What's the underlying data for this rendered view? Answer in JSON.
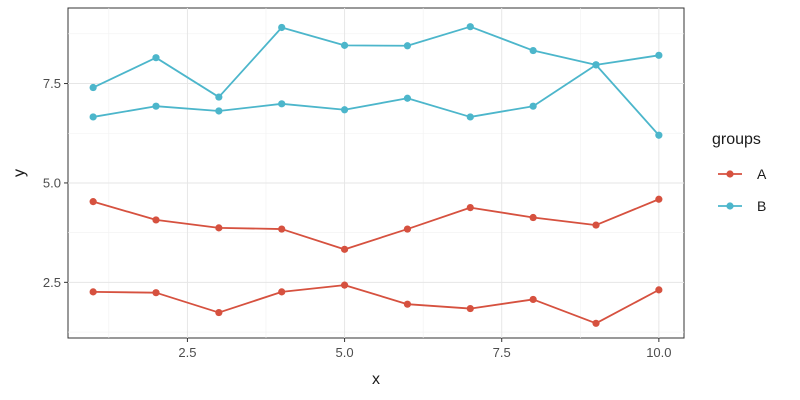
{
  "chart_data": {
    "type": "line",
    "title": "",
    "xlabel": "x",
    "ylabel": "y",
    "xlim": [
      0.6,
      10.4
    ],
    "ylim": [
      1.1,
      9.4
    ],
    "xticks": [
      2.5,
      5.0,
      7.5,
      10.0
    ],
    "xtick_labels": [
      "2.5",
      "5.0",
      "7.5",
      "10.0"
    ],
    "yticks": [
      2.5,
      5.0,
      7.5
    ],
    "ytick_labels": [
      "2.5",
      "5.0",
      "7.5"
    ],
    "grid": true,
    "legend": {
      "title": "groups",
      "position": "right"
    },
    "x": [
      1,
      2,
      3,
      4,
      5,
      6,
      7,
      8,
      9,
      10
    ],
    "series": [
      {
        "name": "A",
        "group": "A",
        "color": "#D6513F",
        "values": [
          4.53,
          4.07,
          3.87,
          3.84,
          3.33,
          3.84,
          4.38,
          4.13,
          3.94,
          4.59
        ]
      },
      {
        "name": "A",
        "group": "A",
        "color": "#D6513F",
        "values": [
          2.26,
          2.24,
          1.74,
          2.26,
          2.43,
          1.95,
          1.84,
          2.07,
          1.47,
          2.31
        ]
      },
      {
        "name": "B",
        "group": "B",
        "color": "#4CB6CB",
        "values": [
          7.4,
          8.15,
          7.16,
          8.91,
          8.46,
          8.45,
          8.93,
          8.33,
          7.97,
          8.21
        ]
      },
      {
        "name": "B",
        "group": "B",
        "color": "#4CB6CB",
        "values": [
          6.66,
          6.93,
          6.81,
          6.99,
          6.84,
          7.13,
          6.66,
          6.93,
          7.97,
          6.2
        ]
      }
    ],
    "legend_entries": [
      {
        "label": "A",
        "color": "#D6513F"
      },
      {
        "label": "B",
        "color": "#4CB6CB"
      }
    ]
  }
}
